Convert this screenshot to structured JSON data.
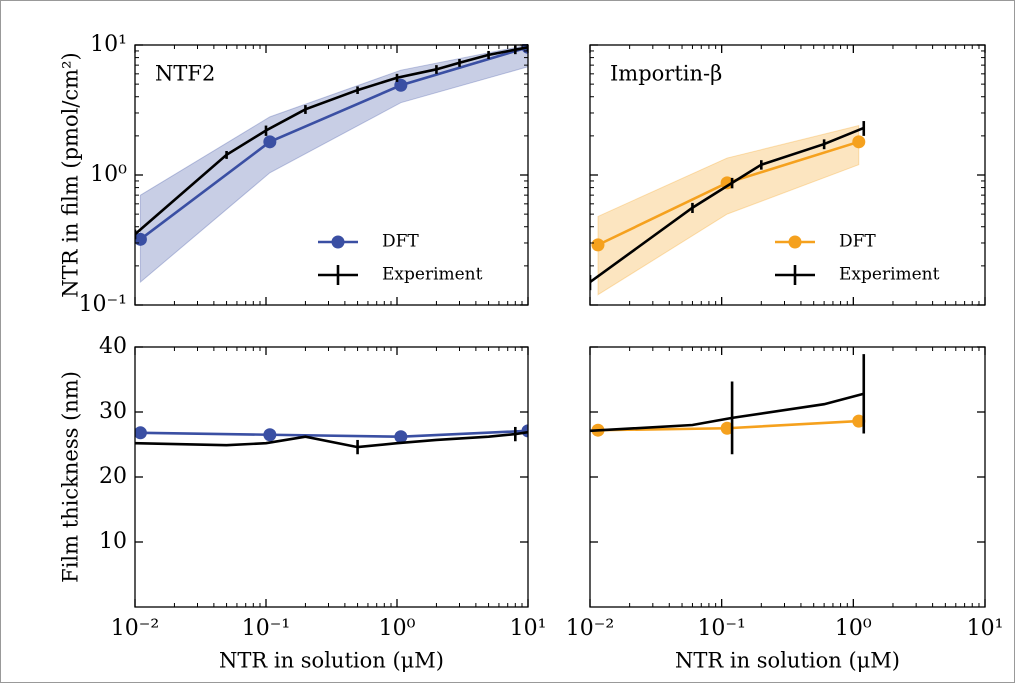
{
  "chart_data": [
    {
      "type": "line",
      "title": "NTF2",
      "ylabel": "NTR in film (pmol/cm²)",
      "xscale": "log",
      "yscale": "log",
      "xlim": [
        0.01,
        10
      ],
      "ylim": [
        0.1,
        10
      ],
      "yticks": [
        {
          "value": 0.1,
          "label": "10⁻¹"
        },
        {
          "value": 1,
          "label": "10⁰"
        },
        {
          "value": 10,
          "label": "10¹"
        }
      ],
      "legend": "lower right",
      "series": [
        {
          "name": "DFT",
          "color": "#3a4fa3",
          "marker": "o",
          "x": [
            0.011,
            0.107,
            1.07,
            10
          ],
          "values": [
            0.32,
            1.8,
            4.9,
            9.6
          ],
          "band_upper": [
            0.7,
            2.8,
            6.4,
            10
          ],
          "band_lower": [
            0.15,
            1.04,
            3.6,
            6.8
          ]
        },
        {
          "name": "Experiment",
          "color": "#000000",
          "x": [
            0.01,
            0.05,
            0.1,
            0.2,
            0.5,
            1,
            2,
            3,
            5,
            8,
            10
          ],
          "values": [
            0.35,
            1.43,
            2.2,
            3.2,
            4.5,
            5.6,
            6.5,
            7.3,
            8.4,
            9.2,
            9.6
          ],
          "errors": [
            0.03,
            0.1,
            0.2,
            0.25,
            0.3,
            0.4,
            0.5,
            0.5,
            0.6,
            0.7,
            0.7
          ]
        }
      ]
    },
    {
      "type": "line",
      "title": "Importin-β",
      "xscale": "log",
      "yscale": "log",
      "xlim": [
        0.01,
        10
      ],
      "ylim": [
        0.1,
        10
      ],
      "legend": "lower right",
      "series": [
        {
          "name": "DFT",
          "color": "#f5a11e",
          "marker": "o",
          "x": [
            0.0115,
            0.11,
            1.1
          ],
          "values": [
            0.29,
            0.87,
            1.8
          ],
          "band_upper": [
            0.48,
            1.35,
            2.4
          ],
          "band_lower": [
            0.12,
            0.5,
            1.2
          ]
        },
        {
          "name": "Experiment",
          "color": "#000000",
          "x": [
            0.01,
            0.06,
            0.12,
            0.2,
            0.6,
            1.2
          ],
          "values": [
            0.15,
            0.56,
            0.87,
            1.2,
            1.73,
            2.3
          ],
          "errors": [
            0.02,
            0.05,
            0.08,
            0.1,
            0.15,
            0.3
          ]
        }
      ]
    },
    {
      "type": "line",
      "ylabel": "Film thickness (nm)",
      "xlabel": "NTR in solution (μM)",
      "xscale": "log",
      "yscale": "linear",
      "xlim": [
        0.01,
        10
      ],
      "ylim": [
        0,
        40
      ],
      "xticks": [
        {
          "value": 0.01,
          "label": "10⁻²"
        },
        {
          "value": 0.1,
          "label": "10⁻¹"
        },
        {
          "value": 1,
          "label": "10⁰"
        },
        {
          "value": 10,
          "label": "10¹"
        }
      ],
      "yticks": [
        10,
        20,
        30,
        40
      ],
      "series": [
        {
          "name": "DFT",
          "color": "#3a4fa3",
          "marker": "o",
          "x": [
            0.011,
            0.107,
            1.07,
            10
          ],
          "values": [
            26.8,
            26.5,
            26.2,
            27.1
          ]
        },
        {
          "name": "Experiment",
          "color": "#000000",
          "x": [
            0.01,
            0.05,
            0.1,
            0.2,
            0.5,
            1,
            2,
            5,
            8,
            10
          ],
          "values": [
            25.2,
            24.9,
            25.2,
            26.2,
            24.6,
            25.2,
            25.7,
            26.2,
            26.6,
            26.9
          ],
          "errors": [
            null,
            null,
            null,
            null,
            1.1,
            null,
            null,
            null,
            1.1,
            null
          ]
        }
      ]
    },
    {
      "type": "line",
      "xlabel": "NTR in solution (μM)",
      "xscale": "log",
      "yscale": "linear",
      "xlim": [
        0.01,
        10
      ],
      "ylim": [
        0,
        40
      ],
      "xticks": [
        {
          "value": 0.01,
          "label": "10⁻²"
        },
        {
          "value": 0.1,
          "label": "10⁻¹"
        },
        {
          "value": 1,
          "label": "10⁰"
        },
        {
          "value": 10,
          "label": "10¹"
        }
      ],
      "series": [
        {
          "name": "DFT",
          "color": "#f5a11e",
          "marker": "o",
          "x": [
            0.0115,
            0.11,
            1.1
          ],
          "values": [
            27.2,
            27.5,
            28.6
          ]
        },
        {
          "name": "Experiment",
          "color": "#000000",
          "x": [
            0.01,
            0.06,
            0.12,
            0.6,
            1.2
          ],
          "values": [
            27.1,
            28.0,
            29.1,
            31.2,
            32.8
          ],
          "errors": [
            null,
            null,
            5.6,
            null,
            6.1
          ]
        }
      ]
    }
  ]
}
